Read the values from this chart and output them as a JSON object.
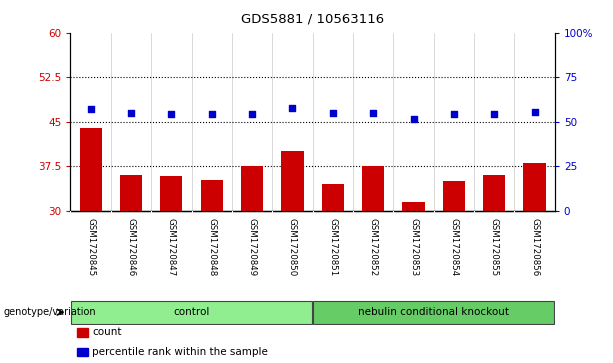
{
  "title": "GDS5881 / 10563116",
  "samples": [
    "GSM1720845",
    "GSM1720846",
    "GSM1720847",
    "GSM1720848",
    "GSM1720849",
    "GSM1720850",
    "GSM1720851",
    "GSM1720852",
    "GSM1720853",
    "GSM1720854",
    "GSM1720855",
    "GSM1720856"
  ],
  "bar_values": [
    44.0,
    36.0,
    35.8,
    35.2,
    37.5,
    40.0,
    34.5,
    37.5,
    31.5,
    35.0,
    36.0,
    38.0
  ],
  "dot_values_left": [
    47.2,
    46.5,
    46.2,
    46.2,
    46.3,
    47.3,
    46.4,
    46.5,
    45.5,
    46.3,
    46.3,
    46.7
  ],
  "bar_color": "#cc0000",
  "dot_color": "#0000cc",
  "ylim_left": [
    30,
    60
  ],
  "ylim_right": [
    0,
    100
  ],
  "yticks_left": [
    30,
    37.5,
    45,
    52.5,
    60
  ],
  "yticks_right": [
    0,
    25,
    50,
    75,
    100
  ],
  "ytick_labels_left": [
    "30",
    "37.5",
    "45",
    "52.5",
    "60"
  ],
  "ytick_labels_right": [
    "0",
    "25",
    "50",
    "75",
    "100%"
  ],
  "hlines": [
    37.5,
    45,
    52.5
  ],
  "groups": [
    {
      "label": "control",
      "start": 0,
      "end": 6,
      "color": "#90ee90"
    },
    {
      "label": "nebulin conditional knockout",
      "start": 6,
      "end": 12,
      "color": "#66cc66"
    }
  ],
  "group_row_label": "genotype/variation",
  "legend": [
    {
      "label": "count",
      "color": "#cc0000"
    },
    {
      "label": "percentile rank within the sample",
      "color": "#0000cc"
    }
  ],
  "bg_color": "#ffffff",
  "tick_area_bg": "#c8c8c8",
  "bar_bottom": 30
}
